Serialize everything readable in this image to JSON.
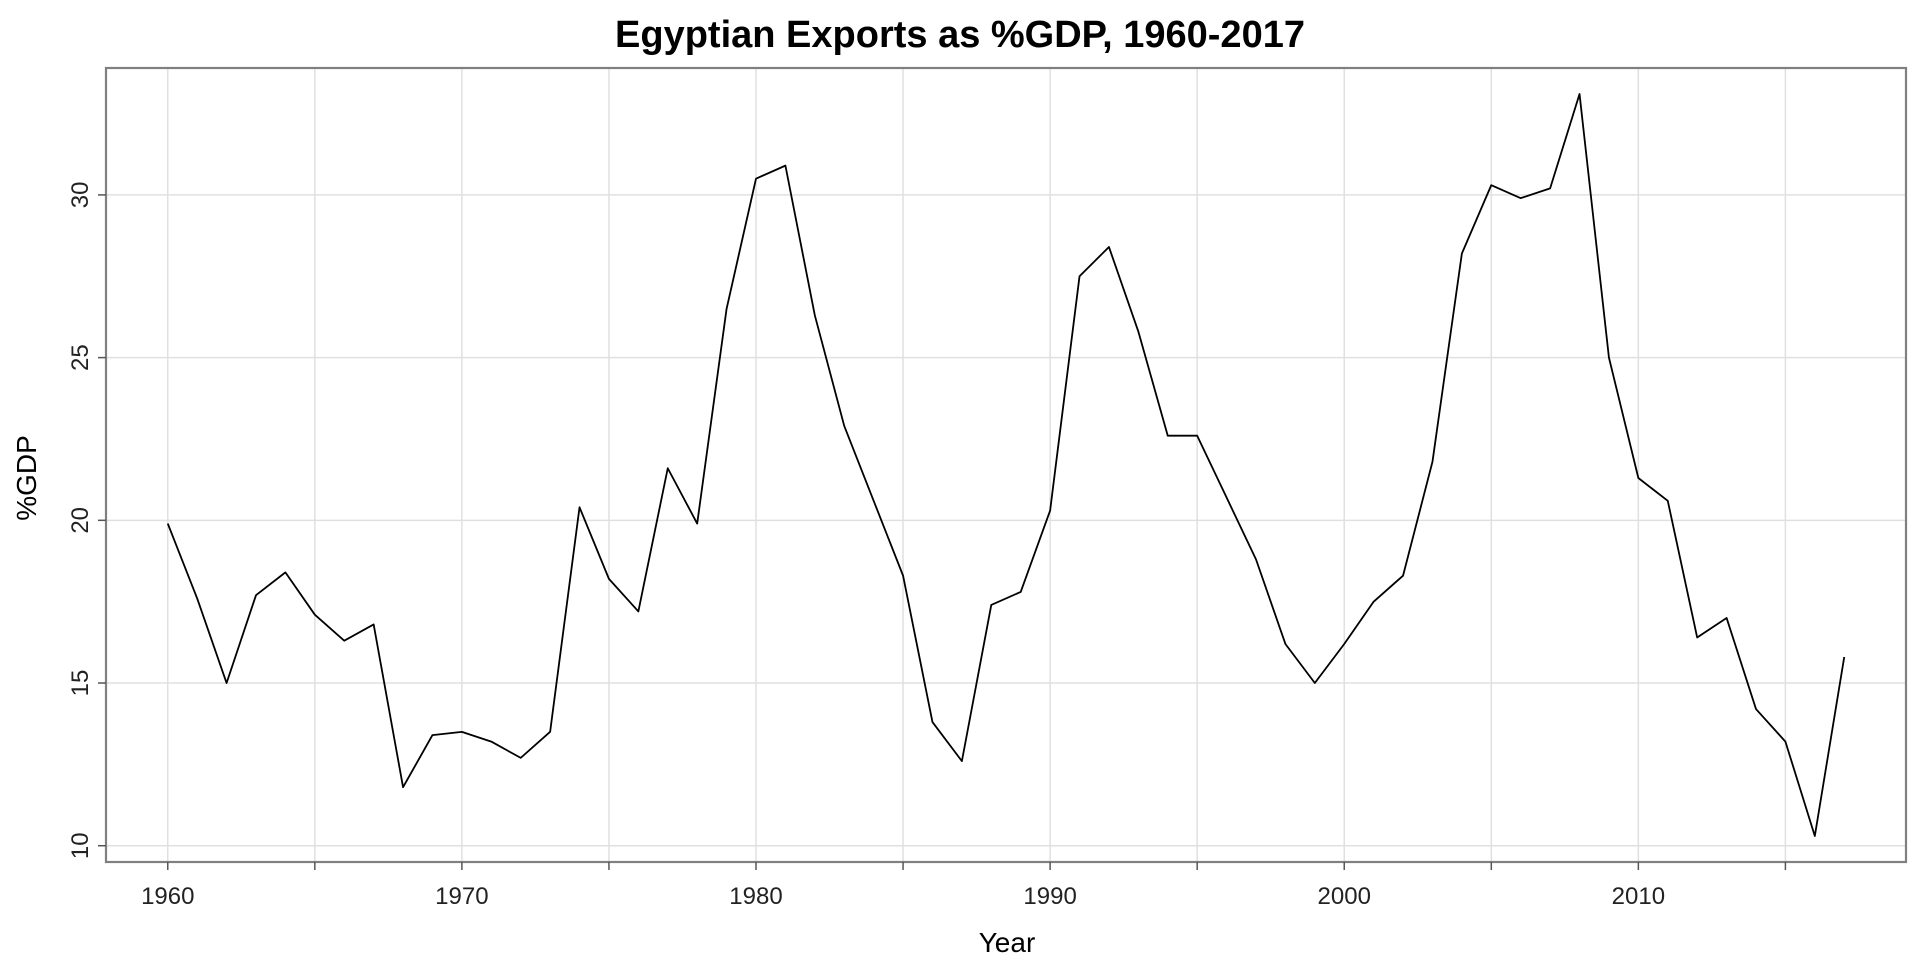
{
  "chart_data": {
    "type": "line",
    "title": "Egyptian Exports as %GDP, 1960-2017",
    "xlabel": "Year",
    "ylabel": "%GDP",
    "xlim": [
      1957.9,
      2019.1
    ],
    "ylim": [
      9.5,
      33.9
    ],
    "xticks": [
      1960,
      1970,
      1980,
      1990,
      2000,
      2010
    ],
    "xticks_minor": [
      1965,
      1975,
      1985,
      1995,
      2005,
      2015
    ],
    "yticks": [
      10,
      15,
      20,
      25,
      30
    ],
    "grid": true,
    "legend": "none",
    "series": [
      {
        "color": "#000000",
        "x": [
          1960,
          1961,
          1962,
          1963,
          1964,
          1965,
          1966,
          1967,
          1968,
          1969,
          1970,
          1971,
          1972,
          1973,
          1974,
          1975,
          1976,
          1977,
          1978,
          1979,
          1980,
          1981,
          1982,
          1983,
          1984,
          1985,
          1986,
          1987,
          1988,
          1989,
          1990,
          1991,
          1992,
          1993,
          1994,
          1995,
          1996,
          1997,
          1998,
          1999,
          2000,
          2001,
          2002,
          2003,
          2004,
          2005,
          2006,
          2007,
          2008,
          2009,
          2010,
          2011,
          2012,
          2013,
          2014,
          2015,
          2016,
          2017
        ],
        "y": [
          19.9,
          17.6,
          15.0,
          17.7,
          18.4,
          17.1,
          16.3,
          16.8,
          11.8,
          13.4,
          13.5,
          13.2,
          12.7,
          13.5,
          20.4,
          18.2,
          17.2,
          21.6,
          19.9,
          26.5,
          30.5,
          30.9,
          26.3,
          22.9,
          20.6,
          18.3,
          13.8,
          12.6,
          17.4,
          17.8,
          20.3,
          27.5,
          28.4,
          25.8,
          22.6,
          22.6,
          20.7,
          18.8,
          16.2,
          15.0,
          16.2,
          17.5,
          18.3,
          21.8,
          28.2,
          30.3,
          29.9,
          30.2,
          33.1,
          25.0,
          21.3,
          20.6,
          16.4,
          17.0,
          14.2,
          13.2,
          10.3,
          15.8
        ]
      }
    ]
  }
}
